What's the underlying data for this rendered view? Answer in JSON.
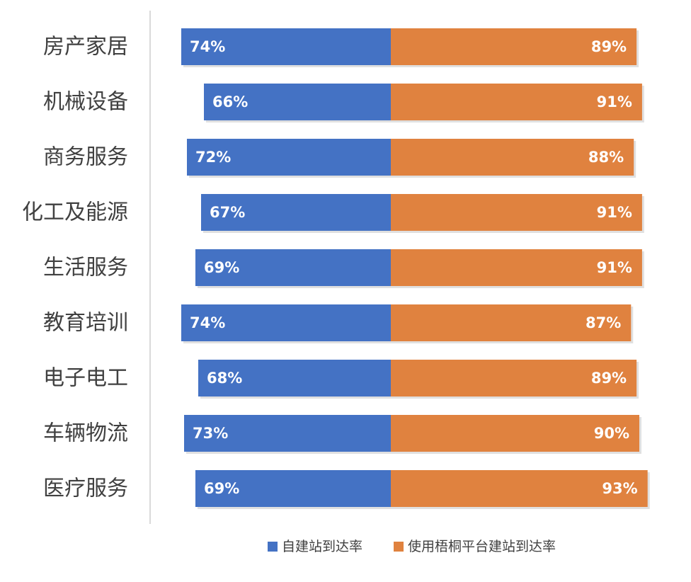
{
  "chart_data": {
    "type": "bar",
    "orientation": "horizontal",
    "stacked": "diverging",
    "categories": [
      "房产家居",
      "机械设备",
      "商务服务",
      "化工及能源",
      "生活服务",
      "教育培训",
      "电子电工",
      "车辆物流",
      "医疗服务"
    ],
    "series": [
      {
        "name": "自建站到达率",
        "color": "#4472C4",
        "values": [
          74,
          66,
          72,
          67,
          69,
          74,
          68,
          73,
          69
        ],
        "labels": [
          "74%",
          "66%",
          "72%",
          "67%",
          "69%",
          "74%",
          "68%",
          "73%",
          "69%"
        ]
      },
      {
        "name": "使用梧桐平台建站到达率",
        "color": "#E0823F",
        "values": [
          89,
          91,
          88,
          91,
          91,
          87,
          89,
          90,
          93
        ],
        "labels": [
          "89%",
          "91%",
          "88%",
          "91%",
          "91%",
          "87%",
          "89%",
          "90%",
          "93%"
        ]
      }
    ],
    "title": "",
    "xlabel": "",
    "ylabel": "",
    "legend_position": "bottom",
    "grid": false
  }
}
